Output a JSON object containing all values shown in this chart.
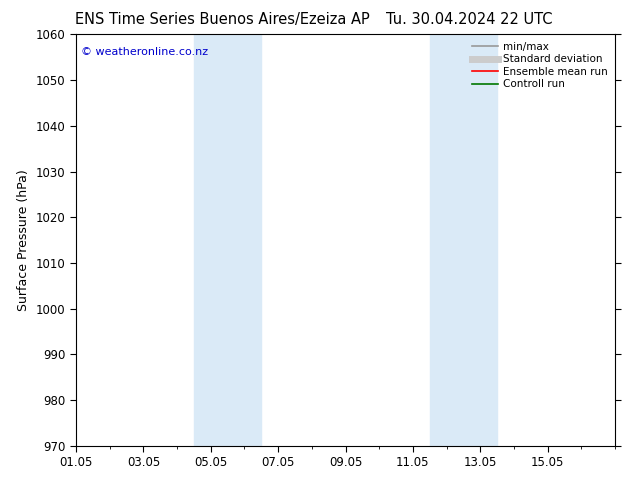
{
  "title_left": "ENS Time Series Buenos Aires/Ezeiza AP",
  "title_right": "Tu. 30.04.2024 22 UTC",
  "ylabel": "Surface Pressure (hPa)",
  "ylim": [
    970,
    1060
  ],
  "yticks": [
    970,
    980,
    990,
    1000,
    1010,
    1020,
    1030,
    1040,
    1050,
    1060
  ],
  "xlim_start": 0,
  "xlim_end": 16,
  "xtick_labels": [
    "01.05",
    "03.05",
    "05.05",
    "07.05",
    "09.05",
    "11.05",
    "13.05",
    "15.05"
  ],
  "xtick_positions": [
    0,
    2,
    4,
    6,
    8,
    10,
    12,
    14
  ],
  "shaded_bands": [
    {
      "x_start": 3.5,
      "x_end": 5.5,
      "color": "#daeaf7"
    },
    {
      "x_start": 10.5,
      "x_end": 12.5,
      "color": "#daeaf7"
    }
  ],
  "legend_items": [
    {
      "label": "min/max",
      "color": "#999999",
      "lw": 1.2,
      "style": "-"
    },
    {
      "label": "Standard deviation",
      "color": "#cccccc",
      "lw": 5,
      "style": "-"
    },
    {
      "label": "Ensemble mean run",
      "color": "#ff0000",
      "lw": 1.2,
      "style": "-"
    },
    {
      "label": "Controll run",
      "color": "#007700",
      "lw": 1.2,
      "style": "-"
    }
  ],
  "watermark": "© weatheronline.co.nz",
  "watermark_color": "#0000cc",
  "bg_color": "#ffffff",
  "axes_bg": "#ffffff",
  "title_fontsize": 10.5,
  "label_fontsize": 9,
  "tick_fontsize": 8.5,
  "legend_fontsize": 7.5
}
